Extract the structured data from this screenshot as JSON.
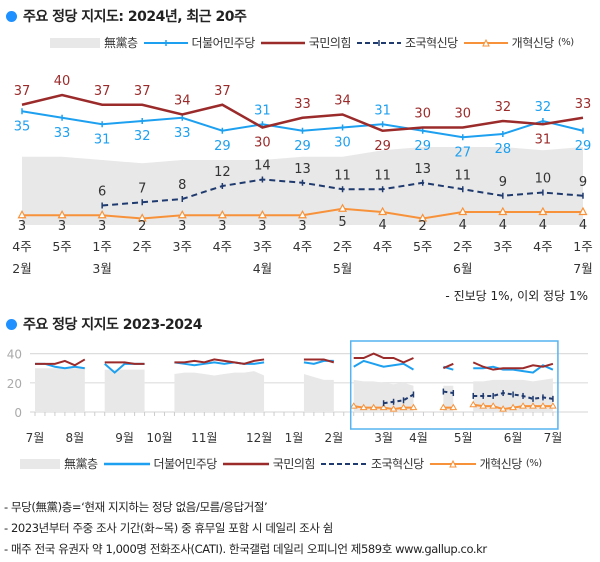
{
  "top": {
    "title": "주요 정당 지지도: 2024년, 최근 20주",
    "note": "- 진보당 1%, 이외 정당 1%"
  },
  "bottom": {
    "title": "주요 정당 지지도 2023-2024"
  },
  "legend": {
    "none": "無黨층",
    "dp": "더불어민주당",
    "ppp": "국민의힘",
    "rk": "조국혁신당",
    "reform": "개혁신당",
    "unit": "(%)"
  },
  "colors": {
    "none": "#e8e8e8",
    "dp": "#1ea0f0",
    "ppp": "#9b2b2b",
    "rk": "#1f3a6e",
    "reform": "#f7923a",
    "highlight": "#56b4f0"
  },
  "footer": [
    "- 무당(無黨)층=‘현재 지지하는 정당 없음/모름/응답거절’",
    "- 2023년부터 주중 조사 기간(화~목) 중 휴무일 포함 시 데일리 조사 쉼",
    "- 매주 전국 유권자 약 1,000명 전화조사(CATI). 한국갤럽 데일리 오피니언 제589호 www.gallup.co.kr"
  ],
  "chart_data": [
    {
      "type": "line",
      "title": "주요 정당 지지도: 2024년, 최근 20주",
      "unit": "%",
      "weeks": [
        "4주",
        "5주",
        "1주",
        "2주",
        "3주",
        "4주",
        "3주",
        "4주",
        "2주",
        "4주",
        "5주",
        "2주",
        "3주",
        "4주",
        "1주"
      ],
      "months": [
        {
          "label": "2월",
          "index": 0
        },
        {
          "label": "3월",
          "index": 2
        },
        {
          "label": "4월",
          "index": 6
        },
        {
          "label": "5월",
          "index": 8
        },
        {
          "label": "6월",
          "index": 11
        },
        {
          "label": "7월",
          "index": 14
        }
      ],
      "series": [
        {
          "key": "none",
          "name": "無黨층",
          "type": "area",
          "values": [
            21,
            21,
            20,
            19,
            20,
            20,
            20,
            21,
            21,
            23,
            24,
            24,
            24,
            23,
            24
          ]
        },
        {
          "key": "dp",
          "name": "더불어민주당",
          "values": [
            35,
            33,
            31,
            32,
            33,
            29,
            31,
            29,
            30,
            31,
            29,
            27,
            28,
            32,
            29
          ]
        },
        {
          "key": "ppp",
          "name": "국민의힘",
          "values": [
            37,
            40,
            37,
            37,
            34,
            37,
            30,
            33,
            34,
            29,
            30,
            30,
            32,
            31,
            33
          ]
        },
        {
          "key": "rk",
          "name": "조국혁신당",
          "values": [
            null,
            null,
            6,
            7,
            8,
            12,
            14,
            13,
            11,
            11,
            13,
            11,
            9,
            10,
            9
          ]
        },
        {
          "key": "reform",
          "name": "개혁신당",
          "values": [
            3,
            3,
            3,
            2,
            3,
            3,
            3,
            3,
            5,
            4,
            2,
            4,
            4,
            4,
            4
          ]
        }
      ]
    },
    {
      "type": "line",
      "title": "주요 정당 지지도 2023-2024",
      "unit": "%",
      "ylim": [
        0,
        45
      ],
      "yticks": [
        "0",
        "20",
        "40"
      ],
      "ytick_values": [
        0,
        20,
        40
      ],
      "total_weeks": 53,
      "months": [
        {
          "label": "7월",
          "week": 0
        },
        {
          "label": "8월",
          "week": 4
        },
        {
          "label": "9월",
          "week": 9
        },
        {
          "label": "10월",
          "week": 12.5
        },
        {
          "label": "11월",
          "week": 17
        },
        {
          "label": "12월",
          "week": 22.5
        },
        {
          "label": "1월",
          "week": 26
        },
        {
          "label": "2월",
          "week": 30
        },
        {
          "label": "3월",
          "week": 35
        },
        {
          "label": "4월",
          "week": 38.5
        },
        {
          "label": "5월",
          "week": 43
        },
        {
          "label": "6월",
          "week": 48
        },
        {
          "label": "7월",
          "week": 52
        }
      ],
      "highlight_weeks": [
        32,
        52
      ],
      "segments": [
        {
          "start": 0,
          "none": [
            30,
            30,
            30,
            30,
            30,
            30
          ],
          "dp": [
            33,
            33,
            31,
            30,
            31,
            30
          ],
          "ppp": [
            33,
            33,
            33,
            35,
            32,
            36
          ],
          "rk": null,
          "reform": null
        },
        {
          "start": 7,
          "none": [
            29,
            29,
            29,
            29,
            29
          ],
          "dp": [
            33,
            27,
            33,
            33,
            33
          ],
          "ppp": [
            34,
            34,
            34,
            33,
            33
          ],
          "rk": null,
          "reform": null
        },
        {
          "start": 14,
          "none": [
            26,
            27,
            27,
            26,
            25,
            26,
            27,
            27,
            28,
            25
          ],
          "dp": [
            34,
            33,
            32,
            33,
            34,
            33,
            34,
            33,
            33,
            34
          ],
          "ppp": [
            34,
            34,
            35,
            34,
            36,
            35,
            34,
            33,
            35,
            36
          ],
          "rk": null,
          "reform": null
        },
        {
          "start": 27,
          "none": [
            26,
            24,
            22,
            22
          ],
          "dp": [
            34,
            33,
            35,
            35
          ],
          "ppp": [
            36,
            36,
            36,
            34
          ],
          "rk": null,
          "reform": null
        },
        {
          "start": 32,
          "none": [
            22,
            21,
            21,
            20,
            19,
            20,
            18
          ],
          "dp": [
            31,
            35,
            33,
            31,
            32,
            33,
            29
          ],
          "ppp": [
            37,
            37,
            40,
            37,
            37,
            34,
            37
          ],
          "rk": [
            null,
            null,
            null,
            6,
            7,
            8,
            12
          ],
          "reform": [
            4,
            3,
            3,
            3,
            2,
            3,
            3
          ]
        },
        {
          "start": 41,
          "none": [
            18,
            18
          ],
          "dp": [
            31,
            29
          ],
          "ppp": [
            30,
            33
          ],
          "rk": [
            14,
            13
          ],
          "reform": [
            3,
            3
          ]
        },
        {
          "start": 44,
          "none": [
            21,
            21,
            22,
            22,
            22,
            22,
            21,
            22,
            23
          ],
          "dp": [
            30,
            30,
            31,
            29,
            29,
            28,
            27,
            32,
            29
          ],
          "ppp": [
            34,
            31,
            29,
            30,
            30,
            30,
            32,
            31,
            33
          ],
          "rk": [
            11,
            11,
            11,
            13,
            12,
            11,
            9,
            10,
            9
          ],
          "reform": [
            5,
            4,
            4,
            2,
            3,
            4,
            4,
            4,
            4
          ]
        }
      ]
    }
  ]
}
